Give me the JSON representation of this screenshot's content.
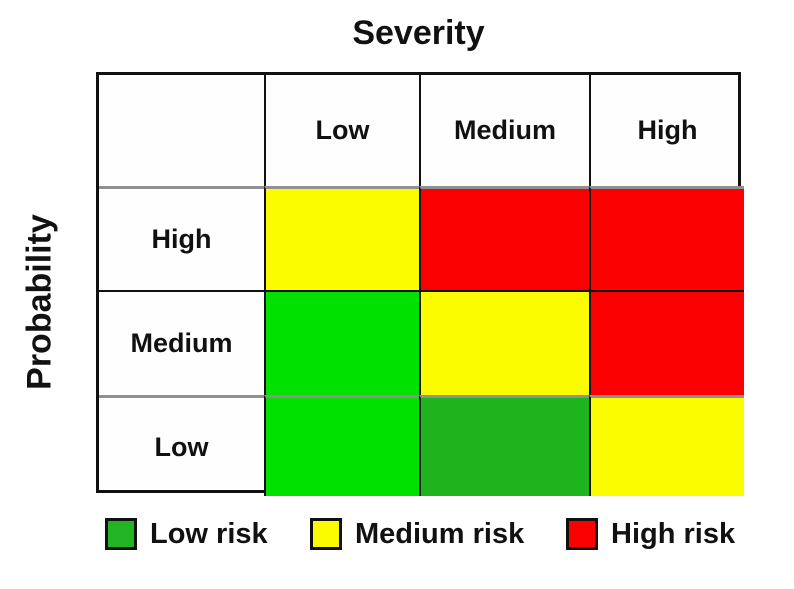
{
  "title": "Severity",
  "y_axis_label": "Probability",
  "colors": {
    "bright_green": "#00e100",
    "dark_green": "#1eb41e",
    "yellow": "#fcfc00",
    "red": "#fb0000",
    "grid_gray": "#909090",
    "grid_black": "#111111"
  },
  "matrix": {
    "column_headers": [
      "Low",
      "Medium",
      "High"
    ],
    "row_headers": [
      "High",
      "Medium",
      "Low"
    ],
    "cell_risks": [
      [
        "medium",
        "high",
        "high"
      ],
      [
        "low",
        "medium",
        "high"
      ],
      [
        "low",
        "low",
        "medium"
      ]
    ],
    "cell_colors": [
      [
        "#fcfc00",
        "#fb0000",
        "#fb0000"
      ],
      [
        "#00e100",
        "#fcfc00",
        "#fb0000"
      ],
      [
        "#00e100",
        "#1eb41e",
        "#fcfc00"
      ]
    ]
  },
  "legend": {
    "items": [
      {
        "label": "Low risk",
        "color": "#22b422"
      },
      {
        "label": "Medium risk",
        "color": "#fcfc00"
      },
      {
        "label": "High risk",
        "color": "#fb0000"
      }
    ]
  }
}
